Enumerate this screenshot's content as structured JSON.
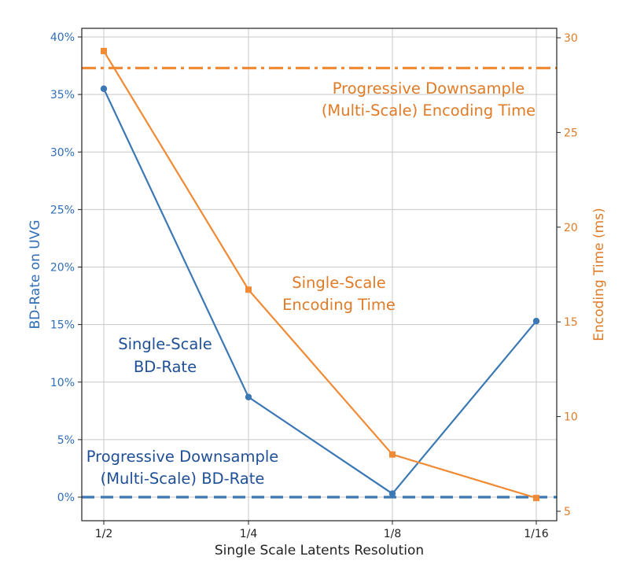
{
  "chart_data": {
    "type": "line",
    "categories": [
      "1/2",
      "1/4",
      "1/8",
      "1/16"
    ],
    "xlabel": "Single Scale Latents Resolution",
    "ylabel": "BD-Rate on UVG",
    "ylabel_right": "Encoding Time (ms)",
    "ylim": [
      0,
      40
    ],
    "ylim_right": [
      5,
      30
    ],
    "y_ticks": [
      "0%",
      "5%",
      "10%",
      "15%",
      "20%",
      "25%",
      "30%",
      "35%",
      "40%"
    ],
    "y_right_ticks": [
      "5",
      "10",
      "15",
      "20",
      "25",
      "30"
    ],
    "grid": true,
    "series": [
      {
        "name": "Single-Scale BD-Rate",
        "axis": "left",
        "color": "#3b78b4",
        "marker": "circle",
        "values": [
          35.5,
          8.7,
          0.3,
          15.3
        ]
      },
      {
        "name": "Single-Scale Encoding Time",
        "axis": "right",
        "color": "#f08a34",
        "marker": "square",
        "values": [
          29.3,
          16.7,
          8.0,
          5.7
        ]
      }
    ],
    "reference_lines": [
      {
        "name": "Progressive Downsample (Multi-Scale) Encoding Time",
        "axis": "right",
        "value": 28.4,
        "style": "dashdot",
        "color": "#f08a34"
      },
      {
        "name": "Progressive Downsample (Multi-Scale) BD-Rate",
        "axis": "left",
        "value": 0.0,
        "style": "dashed",
        "color": "#3b78b4"
      }
    ],
    "annotations": {
      "ms_time_line1": "Progressive Downsample",
      "ms_time_line2": "(Multi-Scale) Encoding Time",
      "ss_time_line1": "Single-Scale",
      "ss_time_line2": "Encoding Time",
      "ss_bd_line1": "Single-Scale",
      "ss_bd_line2": "BD-Rate",
      "ms_bd_line1": "Progressive Downsample",
      "ms_bd_line2": "(Multi-Scale) BD-Rate"
    }
  }
}
